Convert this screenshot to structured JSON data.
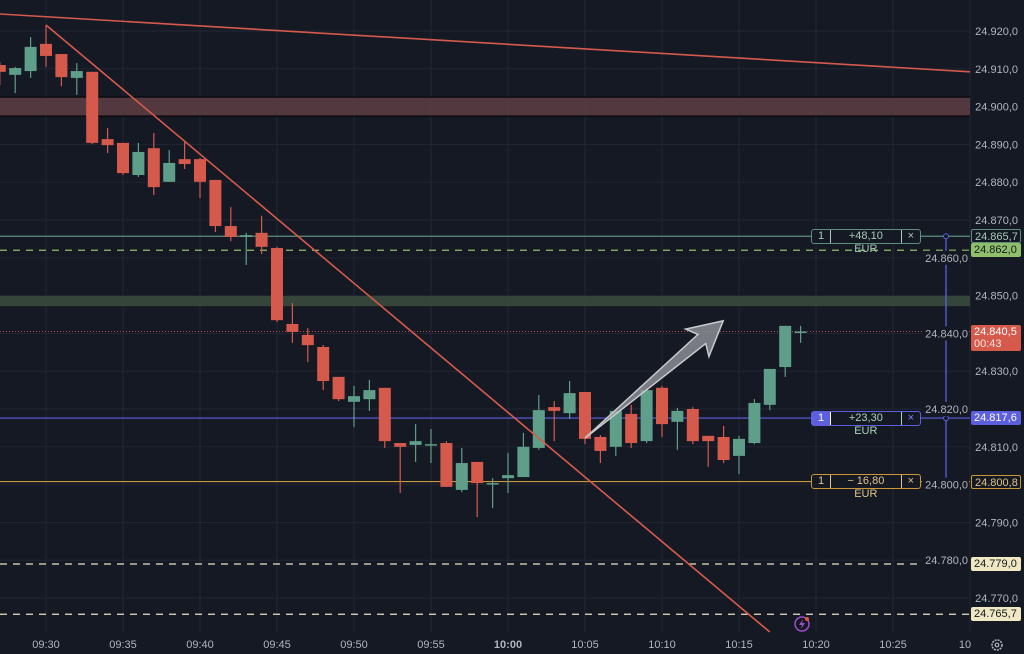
{
  "chart_data": {
    "type": "candlestick",
    "symbol_currency": "EUR",
    "x_ticks": [
      "09:30",
      "09:35",
      "09:40",
      "09:45",
      "09:50",
      "09:55",
      "10:00",
      "10:05",
      "10:10",
      "10:15",
      "10:20",
      "10:25",
      "10"
    ],
    "y_ticks": [
      "24.920,0",
      "24.910,0",
      "24.900,0",
      "24.890,0",
      "24.880,0",
      "24.870,0",
      "24.860,0",
      "24.850,0",
      "24.840,0",
      "24.830,0",
      "24.820,0",
      "24.810,0",
      "24.800,0",
      "24.790,0",
      "24.780,0",
      "24.770,0"
    ],
    "y_tick_values": [
      24920,
      24910,
      24900,
      24890,
      24880,
      24870,
      24860,
      24850,
      24840,
      24830,
      24820,
      24810,
      24800,
      24790,
      24780,
      24770
    ],
    "ylim": [
      24760,
      24928
    ],
    "grid": true,
    "colors": {
      "up": "#5f9e89",
      "down": "#d65a4c",
      "background": "#151924",
      "grid": "#222633"
    },
    "candles": [
      [
        "09:27",
        24911.0,
        24911.8,
        24905.7,
        24909.2
      ],
      [
        "09:28",
        24908.4,
        24910.5,
        24903.6,
        24910.2
      ],
      [
        "09:29",
        24909.4,
        24918.4,
        24907.6,
        24915.8
      ],
      [
        "09:30",
        24916.6,
        24921.6,
        24910.5,
        24913.4
      ],
      [
        "09:31",
        24913.9,
        24913.9,
        24905.4,
        24907.8
      ],
      [
        "09:32",
        24907.6,
        24911.5,
        24903.1,
        24909.4
      ],
      [
        "09:33",
        24909.2,
        24909.2,
        24890.1,
        24890.4
      ],
      [
        "09:34",
        24891.4,
        24894.3,
        24887.7,
        24889.8
      ],
      [
        "09:35",
        24890.4,
        24890.4,
        24881.9,
        24882.4
      ],
      [
        "09:36",
        24881.9,
        24890.4,
        24881.4,
        24888.0
      ],
      [
        "09:37",
        24889.0,
        24893.0,
        24876.6,
        24878.7
      ],
      [
        "09:38",
        24880.1,
        24888.5,
        24880.1,
        24885.1
      ],
      [
        "09:39",
        24886.1,
        24890.6,
        24883.5,
        24884.8
      ],
      [
        "09:40",
        24886.1,
        24886.4,
        24875.8,
        24880.1
      ],
      [
        "09:41",
        24880.6,
        24880.6,
        24866.8,
        24868.4
      ],
      [
        "09:42",
        24868.4,
        24873.4,
        24864.4,
        24865.5
      ],
      [
        "09:43",
        24865.5,
        24866.6,
        24858.1,
        24866.0
      ],
      [
        "09:44",
        24866.6,
        24871.1,
        24861.0,
        24862.9
      ],
      [
        "09:45",
        24862.6,
        24862.9,
        24843.0,
        24843.5
      ],
      [
        "09:46",
        24842.5,
        24848.0,
        24837.5,
        24840.4
      ],
      [
        "09:47",
        24839.6,
        24841.4,
        24832.4,
        24836.9
      ],
      [
        "09:48",
        24836.4,
        24836.9,
        24825.0,
        24827.4
      ],
      [
        "09:49",
        24828.5,
        24828.5,
        24822.1,
        24822.6
      ],
      [
        "09:50",
        24821.9,
        24826.1,
        24815.2,
        24823.4
      ],
      [
        "09:51",
        24822.6,
        24827.7,
        24819.5,
        24825.0
      ],
      [
        "09:52",
        24825.6,
        24825.6,
        24809.7,
        24811.5
      ],
      [
        "09:53",
        24811.0,
        24811.0,
        24797.8,
        24810.0
      ],
      [
        "09:54",
        24810.5,
        24816.0,
        24806.0,
        24811.5
      ],
      [
        "09:55",
        24810.5,
        24814.7,
        24805.7,
        24810.7
      ],
      [
        "09:56",
        24811.0,
        24811.5,
        24799.4,
        24799.4
      ],
      [
        "09:57",
        24798.6,
        24809.7,
        24798.0,
        24805.7
      ],
      [
        "09:58",
        24806.0,
        24806.0,
        24791.4,
        24800.4
      ],
      [
        "09:59",
        24800.2,
        24801.7,
        24793.8,
        24800.4
      ],
      [
        "10:00",
        24801.7,
        24808.4,
        24797.8,
        24802.5
      ],
      [
        "10:01",
        24802.0,
        24813.7,
        24802.0,
        24810.0
      ],
      [
        "10:02",
        24809.7,
        24823.7,
        24809.2,
        24819.7
      ],
      [
        "10:03",
        24820.5,
        24822.1,
        24811.5,
        24819.5
      ],
      [
        "10:04",
        24818.9,
        24827.4,
        24817.4,
        24824.2
      ],
      [
        "10:05",
        24824.5,
        24824.5,
        24810.7,
        24812.1
      ],
      [
        "10:06",
        24812.6,
        24813.1,
        24805.7,
        24808.9
      ],
      [
        "10:07",
        24810.0,
        24819.7,
        24807.6,
        24819.5
      ],
      [
        "10:08",
        24818.7,
        24821.1,
        24809.7,
        24811.0
      ],
      [
        "10:09",
        24811.5,
        24825.6,
        24811.0,
        24825.0
      ],
      [
        "10:10",
        24825.6,
        24826.1,
        24812.6,
        24816.0
      ],
      [
        "10:11",
        24816.6,
        24820.3,
        24809.2,
        24819.5
      ],
      [
        "10:12",
        24820.0,
        24820.5,
        24810.7,
        24811.5
      ],
      [
        "10:13",
        24812.9,
        24812.9,
        24804.7,
        24811.5
      ],
      [
        "10:14",
        24812.6,
        24815.5,
        24805.7,
        24806.5
      ],
      [
        "10:15",
        24807.6,
        24812.9,
        24802.8,
        24812.1
      ],
      [
        "10:16",
        24811.0,
        24822.6,
        24810.7,
        24821.6
      ],
      [
        "10:17",
        24821.1,
        24830.6,
        24819.7,
        24830.6
      ],
      [
        "10:18",
        24831.1,
        24842.0,
        24828.5,
        24842.0
      ],
      [
        "10:19",
        24840.5,
        24842.0,
        24837.5,
        24840.5
      ]
    ],
    "drawings": {
      "trendlines": [
        {
          "from": [
            "09:27",
            24924.5
          ],
          "to": [
            "10:30",
            24909.2
          ],
          "color": "#d65a4c"
        },
        {
          "from": [
            "09:30",
            24921.6
          ],
          "to": [
            "10:17",
            24761.0
          ],
          "color": "#d65a4c"
        }
      ],
      "zones": [
        {
          "top": 24902.5,
          "bottom": 24897.5,
          "color": "#5a3d42"
        },
        {
          "top": 24849.9,
          "bottom": 24847.2,
          "color": "#3a4a3c"
        }
      ],
      "arrow": {
        "from": [
          "10:05",
          24812.3
        ],
        "to": [
          "10:13",
          24842.0
        ],
        "color": "#9a9ca3"
      }
    },
    "last_price": {
      "value": 24840.5,
      "label": "24.840,5",
      "countdown": "00:43",
      "color": "#d65a4c"
    },
    "price_lines": [
      {
        "value": 24865.7,
        "label": "24.865,7",
        "style": "solid",
        "color": "#5f8f7c",
        "position": {
          "qty": "1",
          "pnl": "+48,10 EUR",
          "close": "×"
        }
      },
      {
        "value": 24862.0,
        "label": "24.862,0",
        "style": "dashed",
        "color": "#8fbf6a"
      },
      {
        "value": 24817.6,
        "label": "24.817,6",
        "style": "solid",
        "color": "#5b5fe0",
        "position": {
          "qty": "1",
          "pnl": "+23,30 EUR",
          "close": "×"
        }
      },
      {
        "value": 24800.8,
        "label": "24.800,8",
        "style": "solid",
        "color": "#c9963a",
        "position": {
          "qty": "1",
          "pnl": "− 16,80 EUR",
          "close": "×"
        }
      },
      {
        "value": 24779.0,
        "label": "24.779,0",
        "style": "dashed",
        "color": "#e8e3c4"
      },
      {
        "value": 24765.7,
        "label": "24.765,7",
        "style": "dashed",
        "color": "#e8e3c4"
      }
    ],
    "icons": {
      "lightning": "lightning-icon",
      "settings": "gear-icon"
    }
  }
}
